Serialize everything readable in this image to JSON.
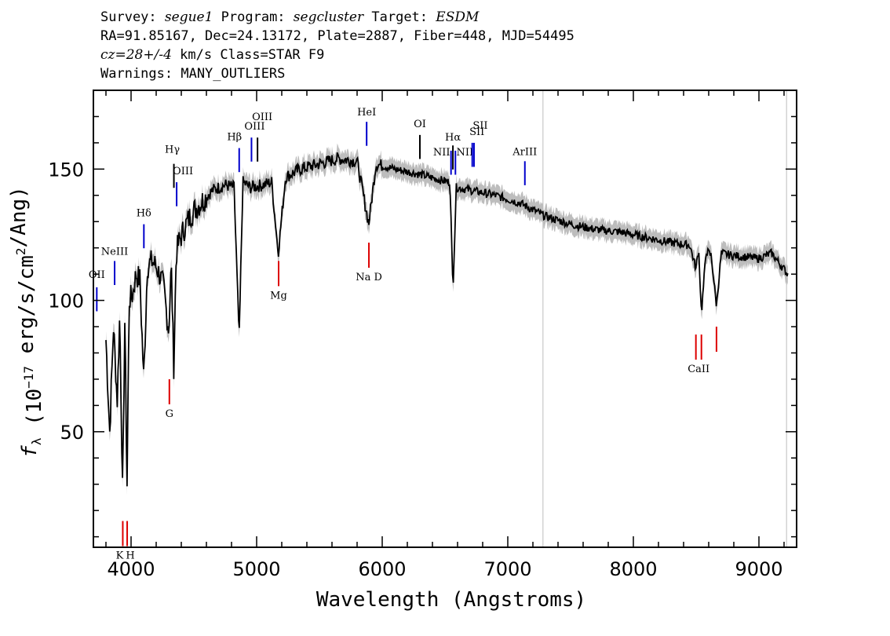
{
  "header": {
    "line1": {
      "survey_label": "Survey:",
      "survey": "segue1",
      "program_label": "Program:",
      "program": "segcluster",
      "target_label": "Target:",
      "target": "ESDM"
    },
    "line2": "RA=91.85167, Dec=24.13172, Plate=2887, Fiber=448, MJD=54495",
    "line3": {
      "cz": "cz=28+/-4",
      "rest": "km/s Class=STAR F9"
    },
    "line4": "Warnings: MANY_OUTLIERS"
  },
  "chart_data": {
    "type": "line",
    "xlabel": "Wavelength (Angstroms)",
    "ylabel": "f_λ (10^-17 erg/s/cm^2/Ang)",
    "xlim": [
      3700,
      9300
    ],
    "ylim": [
      6,
      180
    ],
    "x_ticks": [
      4000,
      5000,
      6000,
      7000,
      8000,
      9000
    ],
    "y_ticks": [
      50,
      100,
      150
    ],
    "series": [
      {
        "x": [
          3800,
          3830,
          3860,
          3890,
          3910,
          3933,
          3950,
          3968,
          3985,
          4010,
          4040,
          4070,
          4101,
          4130,
          4170,
          4210,
          4260,
          4300,
          4320,
          4340,
          4360,
          4380,
          4420,
          4480,
          4550,
          4650,
          4750,
          4820,
          4861,
          4890,
          4950,
          5050,
          5120,
          5172,
          5230,
          5350,
          5500,
          5650,
          5800,
          5893,
          5950,
          6100,
          6300,
          6450,
          6540,
          6563,
          6590,
          6700,
          6900,
          7100,
          7300,
          7500,
          7700,
          7900,
          8100,
          8300,
          8450,
          8498,
          8520,
          8542,
          8580,
          8620,
          8662,
          8700,
          8800,
          9000,
          9100,
          9230
        ],
        "y": [
          85,
          50,
          90,
          62,
          95,
          25,
          92,
          30,
          100,
          102,
          110,
          108,
          70,
          113,
          115,
          112,
          105,
          88,
          114,
          75,
          118,
          122,
          127,
          133,
          137,
          142,
          144,
          143,
          85,
          145,
          143,
          144,
          145,
          118,
          147,
          150,
          152,
          154,
          153,
          129,
          152,
          150,
          148,
          146,
          145,
          104,
          143,
          142,
          140,
          137,
          132,
          129,
          127,
          126,
          124,
          122,
          121,
          112,
          120,
          95,
          119,
          117,
          98,
          118,
          117,
          116,
          118,
          110
        ]
      }
    ],
    "emission_lines": [
      {
        "label": "OII",
        "x": 3727
      },
      {
        "label": "NeIII",
        "x": 3869
      },
      {
        "label": "Hδ",
        "x": 4102
      },
      {
        "label": "Hγ",
        "x": 4341
      },
      {
        "label": "OIII",
        "x": 4363
      },
      {
        "label": "Hβ",
        "x": 4861
      },
      {
        "label": "OIII",
        "x": 4959
      },
      {
        "label": "OIII",
        "x": 5007
      },
      {
        "label": "HeI",
        "x": 5876
      },
      {
        "label": "OI",
        "x": 6300
      },
      {
        "label": "NII",
        "x": 6548
      },
      {
        "label": "Hα",
        "x": 6563
      },
      {
        "label": "NII",
        "x": 6583
      },
      {
        "label": "SII",
        "x": 6717
      },
      {
        "label": "SII",
        "x": 6731
      },
      {
        "label": "ArIII",
        "x": 7136
      }
    ],
    "absorption_lines": [
      {
        "label": "K",
        "x": 3934
      },
      {
        "label": "H",
        "x": 3969
      },
      {
        "label": "G",
        "x": 4305
      },
      {
        "label": "Mg",
        "x": 5175
      },
      {
        "label": "Na D",
        "x": 5894
      },
      {
        "label": "CaII",
        "x": 8498
      },
      {
        "label": "CaII",
        "x": 8542
      },
      {
        "label": "CaII",
        "x": 8662
      }
    ],
    "colors": {
      "spectrum": "#000000",
      "error_band": "#bdbdbd",
      "emission": "#0000cc",
      "absorption": "#dd0000",
      "sky_marker": "#c8c8c8"
    }
  }
}
